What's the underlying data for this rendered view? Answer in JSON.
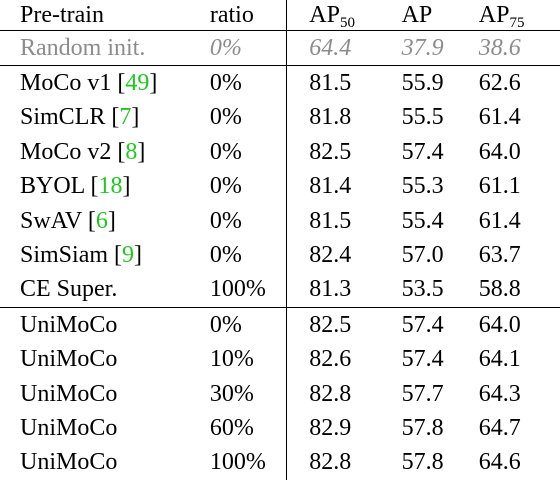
{
  "table": {
    "header": {
      "pretrain": "Pre-train",
      "ratio": "ratio",
      "ap50_base": "AP",
      "ap50_sub": "50",
      "ap": "AP",
      "ap75_base": "AP",
      "ap75_sub": "75"
    },
    "rows": [
      {
        "name": "Random init.",
        "cite": "",
        "ratio": "0%",
        "ap50": "64.4",
        "ap": "37.9",
        "ap75": "38.6"
      },
      {
        "name": "MoCo v1 ",
        "cite": "49",
        "ratio": "0%",
        "ap50": "81.5",
        "ap": "55.9",
        "ap75": "62.6"
      },
      {
        "name": "SimCLR ",
        "cite": "7",
        "ratio": "0%",
        "ap50": "81.8",
        "ap": "55.5",
        "ap75": "61.4"
      },
      {
        "name": "MoCo v2 ",
        "cite": "8",
        "ratio": "0%",
        "ap50": "82.5",
        "ap": "57.4",
        "ap75": "64.0"
      },
      {
        "name": "BYOL ",
        "cite": "18",
        "ratio": "0%",
        "ap50": "81.4",
        "ap": "55.3",
        "ap75": "61.1"
      },
      {
        "name": "SwAV ",
        "cite": "6",
        "ratio": "0%",
        "ap50": "81.5",
        "ap": "55.4",
        "ap75": "61.4"
      },
      {
        "name": "SimSiam ",
        "cite": "9",
        "ratio": "0%",
        "ap50": "82.4",
        "ap": "57.0",
        "ap75": "63.7"
      },
      {
        "name": "CE Super.",
        "cite": "",
        "ratio": "100%",
        "ap50": "81.3",
        "ap": "53.5",
        "ap75": "58.8"
      },
      {
        "name": "UniMoCo",
        "cite": "",
        "ratio": "0%",
        "ap50": "82.5",
        "ap": "57.4",
        "ap75": "64.0"
      },
      {
        "name": "UniMoCo",
        "cite": "",
        "ratio": "10%",
        "ap50": "82.6",
        "ap": "57.4",
        "ap75": "64.1"
      },
      {
        "name": "UniMoCo",
        "cite": "",
        "ratio": "30%",
        "ap50": "82.8",
        "ap": "57.7",
        "ap75": "64.3"
      },
      {
        "name": "UniMoCo",
        "cite": "",
        "ratio": "60%",
        "ap50": "82.9",
        "ap": "57.8",
        "ap75": "64.7"
      },
      {
        "name": "UniMoCo",
        "cite": "",
        "ratio": "100%",
        "ap50": "82.8",
        "ap": "57.8",
        "ap75": "64.6"
      }
    ],
    "bold_cells": [
      "11.ap50",
      "11.ap",
      "11.ap75",
      "12.ap"
    ]
  }
}
